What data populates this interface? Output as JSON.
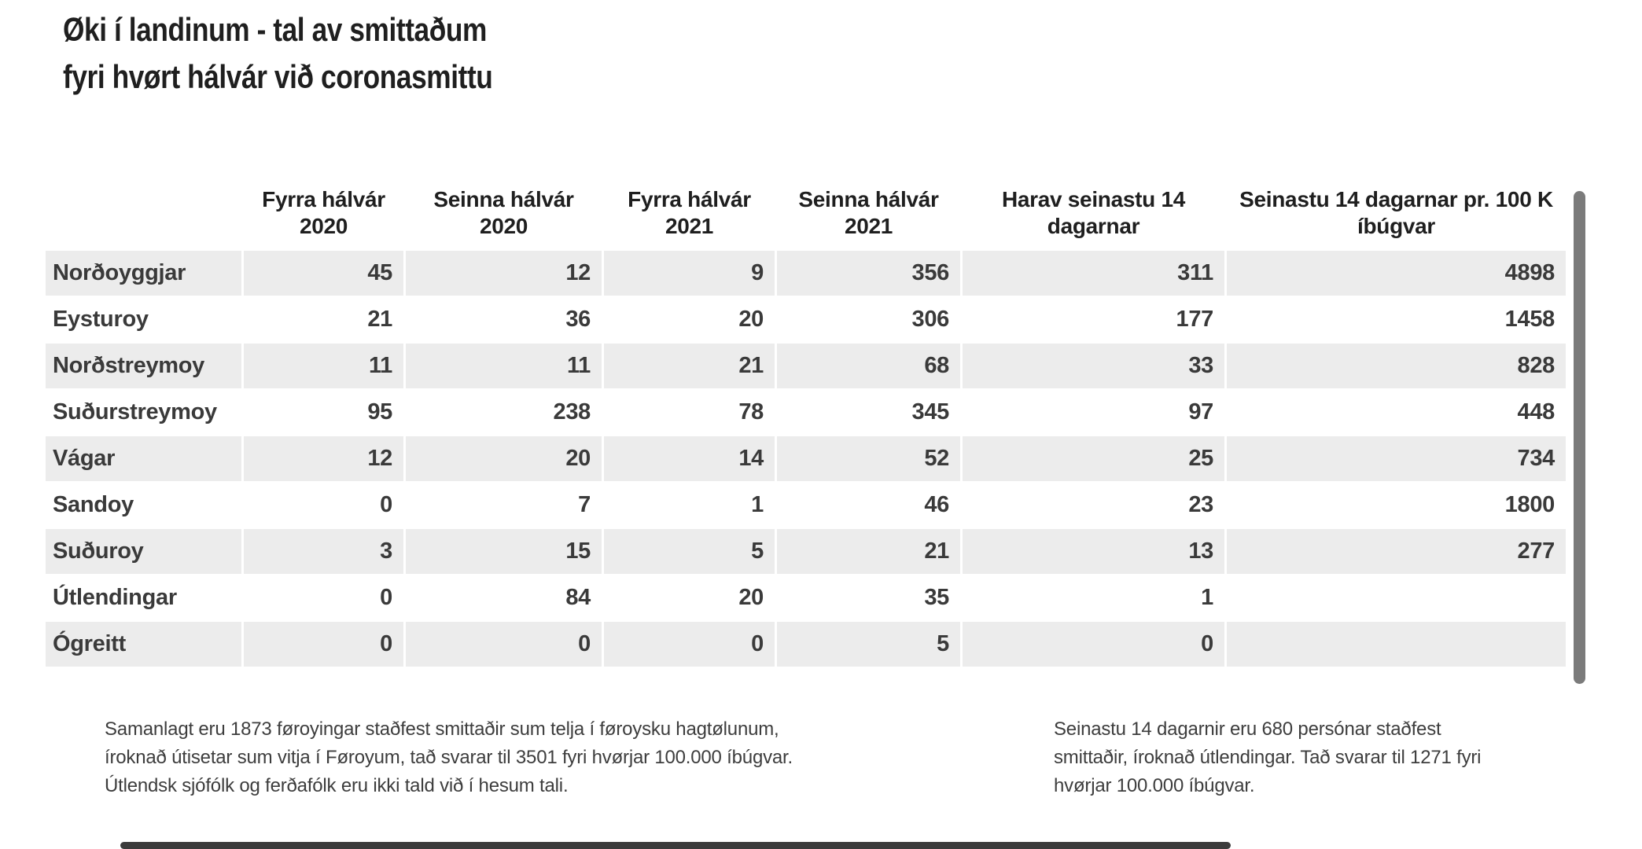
{
  "title": {
    "line1": "Øki í landinum - tal av smittaðum",
    "line2": "fyri hvørt hálvár við coronasmittu"
  },
  "chart_data": {
    "type": "table",
    "title": "Øki í landinum - tal av smittaðum fyri hvørt hálvár við coronasmittu",
    "column_headers": [
      "Fyrra hálvár 2020",
      "Seinna hálvár 2020",
      "Fyrra hálvár 2021",
      "Seinna hálvár 2021",
      "Harav seinastu 14 dagarnar",
      "Seinastu 14 dagarnar pr. 100 K íbúgvar"
    ],
    "rows": [
      {
        "label": "Norðoyggjar",
        "values": [
          "45",
          "12",
          "9",
          "356",
          "311",
          "4898"
        ]
      },
      {
        "label": "Eysturoy",
        "values": [
          "21",
          "36",
          "20",
          "306",
          "177",
          "1458"
        ]
      },
      {
        "label": "Norðstreymoy",
        "values": [
          "11",
          "11",
          "21",
          "68",
          "33",
          "828"
        ]
      },
      {
        "label": "Suðurstreymoy",
        "values": [
          "95",
          "238",
          "78",
          "345",
          "97",
          "448"
        ]
      },
      {
        "label": "Vágar",
        "values": [
          "12",
          "20",
          "14",
          "52",
          "25",
          "734"
        ]
      },
      {
        "label": "Sandoy",
        "values": [
          "0",
          "7",
          "1",
          "46",
          "23",
          "1800"
        ]
      },
      {
        "label": "Suðuroy",
        "values": [
          "3",
          "15",
          "5",
          "21",
          "13",
          "277"
        ]
      },
      {
        "label": "Útlendingar",
        "values": [
          "0",
          "84",
          "20",
          "35",
          "1",
          ""
        ]
      },
      {
        "label": "Ógreitt",
        "values": [
          "0",
          "0",
          "0",
          "5",
          "0",
          ""
        ]
      }
    ],
    "layout_hints": {
      "row_striping": "odd rows shaded",
      "value_alignment": "right",
      "header_alignment": "center"
    }
  },
  "footnotes": {
    "left": "Samanlagt eru 1873 føroyingar staðfest smittaðir sum telja í føroysku hagtølunum, íroknað útisetar sum vitja í Føroyum, tað svarar til 3501 fyri hvørjar 100.000 íbúgvar. Útlendsk sjófólk og ferðafólk eru ikki tald við í hesum tali.",
    "right": "Seinastu 14 dagarnir eru 680 persónar staðfest smittaðir, íroknað útlendingar. Tað svarar til 1271 fyri hvørjar 100.000 íbúgvar."
  },
  "colors": {
    "row_stripe": "#ececec",
    "text": "#3a3a3a",
    "title_text": "#1f1f1f",
    "vertical_scrollbar": "#7b7b7b",
    "horizontal_scrollbar": "#3b3b3b",
    "background": "#ffffff"
  }
}
